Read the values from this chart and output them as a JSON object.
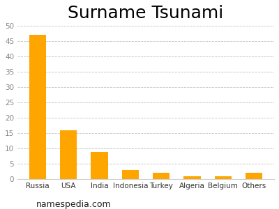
{
  "title": "Surname Tsunami",
  "categories": [
    "Russia",
    "USA",
    "India",
    "Indonesia",
    "Turkey",
    "Algeria",
    "Belgium",
    "Others"
  ],
  "values": [
    47,
    16,
    9,
    3,
    2,
    1,
    1,
    2
  ],
  "bar_color": "#FFA500",
  "ylim": [
    0,
    50
  ],
  "yticks": [
    0,
    5,
    10,
    15,
    20,
    25,
    30,
    35,
    40,
    45,
    50
  ],
  "grid_color": "#b0b0b0",
  "background_color": "#ffffff",
  "title_fontsize": 18,
  "tick_fontsize": 7.5,
  "footer_text": "namespedia.com",
  "footer_fontsize": 9,
  "bar_width": 0.55
}
